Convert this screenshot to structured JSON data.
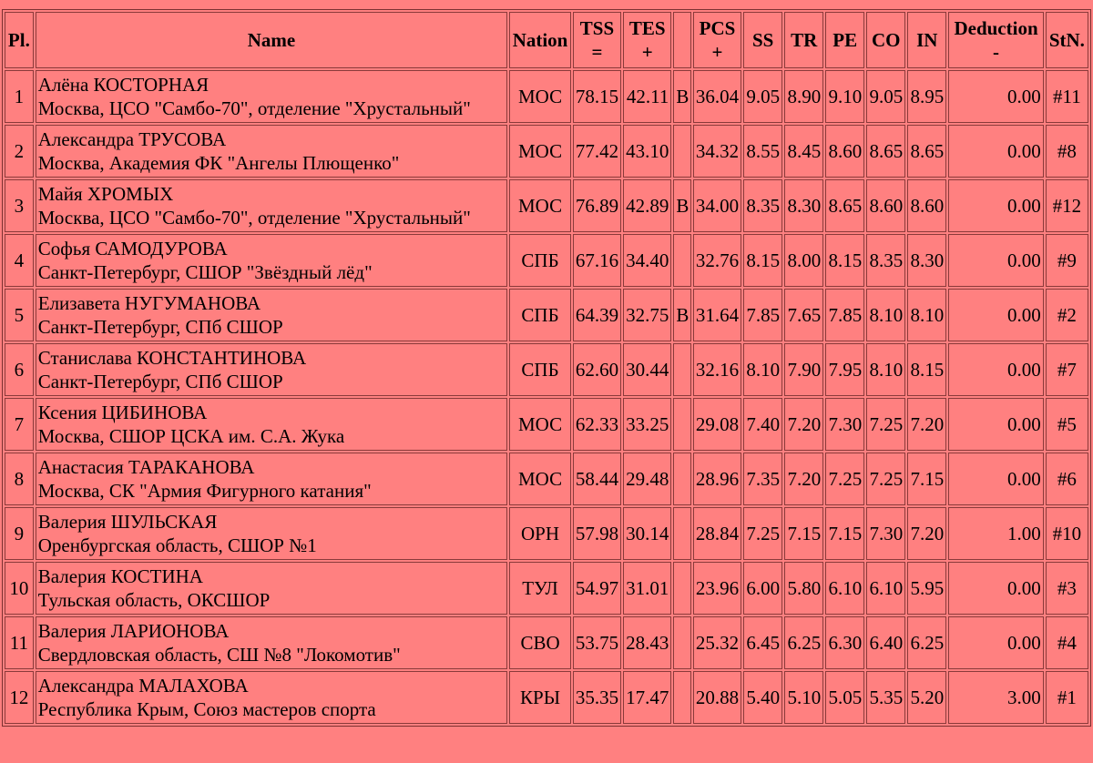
{
  "headers": {
    "pl": "Pl.",
    "name": "Name",
    "nation": "Nation",
    "tss": "TSS",
    "tss_sub": "=",
    "tes": "TES",
    "tes_sub": "+",
    "pcs": "PCS",
    "pcs_sub": "+",
    "ss": "SS",
    "tr": "TR",
    "pe": "PE",
    "co": "CO",
    "in": "IN",
    "deduction": "Deduction",
    "deduction_sub": "-",
    "stn": "StN."
  },
  "rows": [
    {
      "pl": "1",
      "name": "Алёна КОСТОРНАЯ",
      "club": "Москва, ЦСО \"Самбо-70\", отделение \"Хрустальный\"",
      "nation": "МОС",
      "tss": "78.15",
      "tes": "42.11",
      "b": "B",
      "pcs": "36.04",
      "ss": "9.05",
      "tr": "8.90",
      "pe": "9.10",
      "co": "9.05",
      "in": "8.95",
      "ded": "0.00",
      "stn": "#11"
    },
    {
      "pl": "2",
      "name": "Александра ТРУСОВА",
      "club": "Москва, Академия ФК \"Ангелы Плющенко\"",
      "nation": "МОС",
      "tss": "77.42",
      "tes": "43.10",
      "b": "",
      "pcs": "34.32",
      "ss": "8.55",
      "tr": "8.45",
      "pe": "8.60",
      "co": "8.65",
      "in": "8.65",
      "ded": "0.00",
      "stn": "#8"
    },
    {
      "pl": "3",
      "name": "Майя ХРОМЫХ",
      "club": "Москва, ЦСО \"Самбо-70\", отделение \"Хрустальный\"",
      "nation": "МОС",
      "tss": "76.89",
      "tes": "42.89",
      "b": "B",
      "pcs": "34.00",
      "ss": "8.35",
      "tr": "8.30",
      "pe": "8.65",
      "co": "8.60",
      "in": "8.60",
      "ded": "0.00",
      "stn": "#12"
    },
    {
      "pl": "4",
      "name": "Софья САМОДУРОВА",
      "club": "Санкт-Петербург, СШОР \"Звёздный лёд\"",
      "nation": "СПБ",
      "tss": "67.16",
      "tes": "34.40",
      "b": "",
      "pcs": "32.76",
      "ss": "8.15",
      "tr": "8.00",
      "pe": "8.15",
      "co": "8.35",
      "in": "8.30",
      "ded": "0.00",
      "stn": "#9"
    },
    {
      "pl": "5",
      "name": "Елизавета НУГУМАНОВА",
      "club": "Санкт-Петербург, СПб СШОР",
      "nation": "СПБ",
      "tss": "64.39",
      "tes": "32.75",
      "b": "B",
      "pcs": "31.64",
      "ss": "7.85",
      "tr": "7.65",
      "pe": "7.85",
      "co": "8.10",
      "in": "8.10",
      "ded": "0.00",
      "stn": "#2"
    },
    {
      "pl": "6",
      "name": "Станислава КОНСТАНТИНОВА",
      "club": "Санкт-Петербург, СПб СШОР",
      "nation": "СПБ",
      "tss": "62.60",
      "tes": "30.44",
      "b": "",
      "pcs": "32.16",
      "ss": "8.10",
      "tr": "7.90",
      "pe": "7.95",
      "co": "8.10",
      "in": "8.15",
      "ded": "0.00",
      "stn": "#7"
    },
    {
      "pl": "7",
      "name": "Ксения ЦИБИНОВА",
      "club": "Москва, СШОР ЦСКА им. С.А. Жука",
      "nation": "МОС",
      "tss": "62.33",
      "tes": "33.25",
      "b": "",
      "pcs": "29.08",
      "ss": "7.40",
      "tr": "7.20",
      "pe": "7.30",
      "co": "7.25",
      "in": "7.20",
      "ded": "0.00",
      "stn": "#5"
    },
    {
      "pl": "8",
      "name": "Анастасия ТАРАКАНОВА",
      "club": "Москва, СК \"Армия Фигурного катания\"",
      "nation": "МОС",
      "tss": "58.44",
      "tes": "29.48",
      "b": "",
      "pcs": "28.96",
      "ss": "7.35",
      "tr": "7.20",
      "pe": "7.25",
      "co": "7.25",
      "in": "7.15",
      "ded": "0.00",
      "stn": "#6"
    },
    {
      "pl": "9",
      "name": "Валерия ШУЛЬСКАЯ",
      "club": "Оренбургская область, СШОР №1",
      "nation": "ОРН",
      "tss": "57.98",
      "tes": "30.14",
      "b": "",
      "pcs": "28.84",
      "ss": "7.25",
      "tr": "7.15",
      "pe": "7.15",
      "co": "7.30",
      "in": "7.20",
      "ded": "1.00",
      "stn": "#10"
    },
    {
      "pl": "10",
      "name": "Валерия КОСТИНА",
      "club": "Тульская область, ОКСШОР",
      "nation": "ТУЛ",
      "tss": "54.97",
      "tes": "31.01",
      "b": "",
      "pcs": "23.96",
      "ss": "6.00",
      "tr": "5.80",
      "pe": "6.10",
      "co": "6.10",
      "in": "5.95",
      "ded": "0.00",
      "stn": "#3"
    },
    {
      "pl": "11",
      "name": "Валерия ЛАРИОНОВА",
      "club": "Свердловская область, СШ №8 \"Локомотив\"",
      "nation": "СВО",
      "tss": "53.75",
      "tes": "28.43",
      "b": "",
      "pcs": "25.32",
      "ss": "6.45",
      "tr": "6.25",
      "pe": "6.30",
      "co": "6.40",
      "in": "6.25",
      "ded": "0.00",
      "stn": "#4"
    },
    {
      "pl": "12",
      "name": "Александра МАЛАХОВА",
      "club": "Республика Крым, Союз мастеров спорта",
      "nation": "КРЫ",
      "tss": "35.35",
      "tes": "17.47",
      "b": "",
      "pcs": "20.88",
      "ss": "5.40",
      "tr": "5.10",
      "pe": "5.05",
      "co": "5.35",
      "in": "5.20",
      "ded": "3.00",
      "stn": "#1"
    }
  ]
}
